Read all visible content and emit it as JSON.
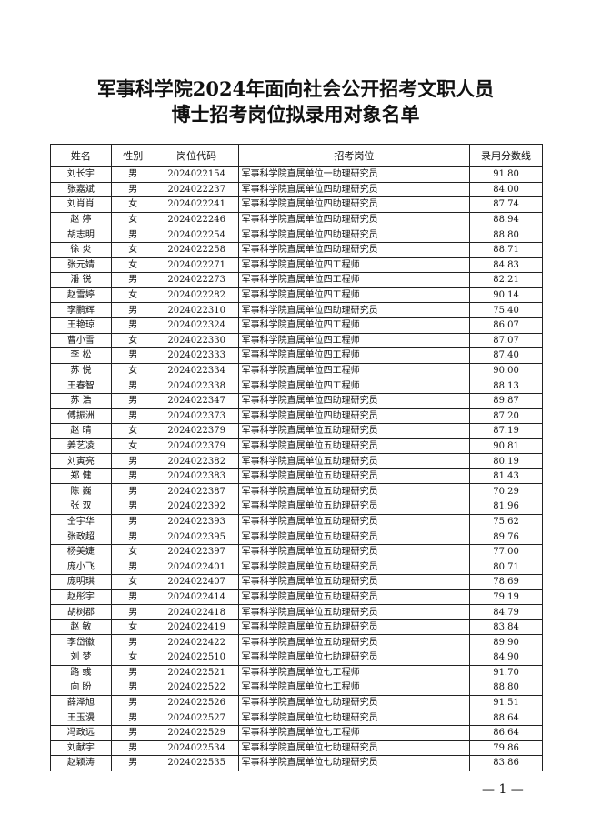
{
  "header": {
    "title_line1": "军事科学院2024年面向社会公开招考文职人员",
    "title_line2": "博士招考岗位拟录用对象名单"
  },
  "table": {
    "columns": [
      "姓名",
      "性别",
      "岗位代码",
      "招考岗位",
      "录用分数线"
    ],
    "rows": [
      [
        "刘长宇",
        "男",
        "2024022154",
        "军事科学院直属单位一助理研究员",
        "91.80"
      ],
      [
        "张嘉斌",
        "男",
        "2024022237",
        "军事科学院直属单位四助理研究员",
        "84.00"
      ],
      [
        "刘肖肖",
        "女",
        "2024022241",
        "军事科学院直属单位四助理研究员",
        "87.74"
      ],
      [
        "赵 婷",
        "女",
        "2024022246",
        "军事科学院直属单位四助理研究员",
        "88.94"
      ],
      [
        "胡志明",
        "男",
        "2024022254",
        "军事科学院直属单位四助理研究员",
        "88.80"
      ],
      [
        "徐 炎",
        "女",
        "2024022258",
        "军事科学院直属单位四助理研究员",
        "88.71"
      ],
      [
        "张元婧",
        "女",
        "2024022271",
        "军事科学院直属单位四工程师",
        "84.83"
      ],
      [
        "潘 锐",
        "男",
        "2024022273",
        "军事科学院直属单位四工程师",
        "82.21"
      ],
      [
        "赵雪婷",
        "女",
        "2024022282",
        "军事科学院直属单位四工程师",
        "90.14"
      ],
      [
        "李鹏辉",
        "男",
        "2024022310",
        "军事科学院直属单位四助理研究员",
        "75.40"
      ],
      [
        "王艳琼",
        "男",
        "2024022324",
        "军事科学院直属单位四工程师",
        "86.07"
      ],
      [
        "曹小雪",
        "女",
        "2024022330",
        "军事科学院直属单位四工程师",
        "87.07"
      ],
      [
        "李 松",
        "男",
        "2024022333",
        "军事科学院直属单位四工程师",
        "87.40"
      ],
      [
        "苏 悦",
        "女",
        "2024022334",
        "军事科学院直属单位四工程师",
        "90.00"
      ],
      [
        "王春智",
        "男",
        "2024022338",
        "军事科学院直属单位四工程师",
        "88.13"
      ],
      [
        "苏 浩",
        "男",
        "2024022347",
        "军事科学院直属单位四助理研究员",
        "89.87"
      ],
      [
        "傅振洲",
        "男",
        "2024022373",
        "军事科学院直属单位四助理研究员",
        "87.20"
      ],
      [
        "赵 晴",
        "女",
        "2024022379",
        "军事科学院直属单位五助理研究员",
        "87.19"
      ],
      [
        "姜艺凌",
        "女",
        "2024022379",
        "军事科学院直属单位五助理研究员",
        "90.81"
      ],
      [
        "刘寅亮",
        "男",
        "2024022382",
        "军事科学院直属单位五助理研究员",
        "80.19"
      ],
      [
        "郑 健",
        "男",
        "2024022383",
        "军事科学院直属单位五助理研究员",
        "81.43"
      ],
      [
        "陈 巍",
        "男",
        "2024022387",
        "军事科学院直属单位五助理研究员",
        "70.29"
      ],
      [
        "张 双",
        "男",
        "2024022392",
        "军事科学院直属单位五助理研究员",
        "81.96"
      ],
      [
        "仝宇华",
        "男",
        "2024022393",
        "军事科学院直属单位五助理研究员",
        "75.62"
      ],
      [
        "张政超",
        "男",
        "2024022395",
        "军事科学院直属单位五助理研究员",
        "89.76"
      ],
      [
        "杨美婕",
        "女",
        "2024022397",
        "军事科学院直属单位五助理研究员",
        "77.00"
      ],
      [
        "庞小飞",
        "男",
        "2024022401",
        "军事科学院直属单位五助理研究员",
        "80.71"
      ],
      [
        "庞明琪",
        "女",
        "2024022407",
        "军事科学院直属单位五助理研究员",
        "78.69"
      ],
      [
        "赵彤宇",
        "男",
        "2024022414",
        "军事科学院直属单位五助理研究员",
        "79.19"
      ],
      [
        "胡树郡",
        "男",
        "2024022418",
        "军事科学院直属单位五助理研究员",
        "84.79"
      ],
      [
        "赵 敏",
        "女",
        "2024022419",
        "军事科学院直属单位五助理研究员",
        "83.84"
      ],
      [
        "李岱徽",
        "男",
        "2024022422",
        "军事科学院直属单位五助理研究员",
        "89.90"
      ],
      [
        "刘 梦",
        "女",
        "2024022510",
        "军事科学院直属单位七助理研究员",
        "84.90"
      ],
      [
        "路 彧",
        "男",
        "2024022521",
        "军事科学院直属单位七工程师",
        "91.70"
      ],
      [
        "向 盼",
        "男",
        "2024022522",
        "军事科学院直属单位七工程师",
        "88.80"
      ],
      [
        "薛泽旭",
        "男",
        "2024022526",
        "军事科学院直属单位七助理研究员",
        "91.51"
      ],
      [
        "王玉漫",
        "男",
        "2024022527",
        "军事科学院直属单位七助理研究员",
        "88.64"
      ],
      [
        "冯政远",
        "男",
        "2024022529",
        "军事科学院直属单位七工程师",
        "86.64"
      ],
      [
        "刘献宇",
        "男",
        "2024022534",
        "军事科学院直属单位七助理研究员",
        "79.86"
      ],
      [
        "赵颖涛",
        "男",
        "2024022535",
        "军事科学院直属单位七助理研究员",
        "83.86"
      ]
    ]
  },
  "footer": {
    "page_number": "— 1 —"
  }
}
